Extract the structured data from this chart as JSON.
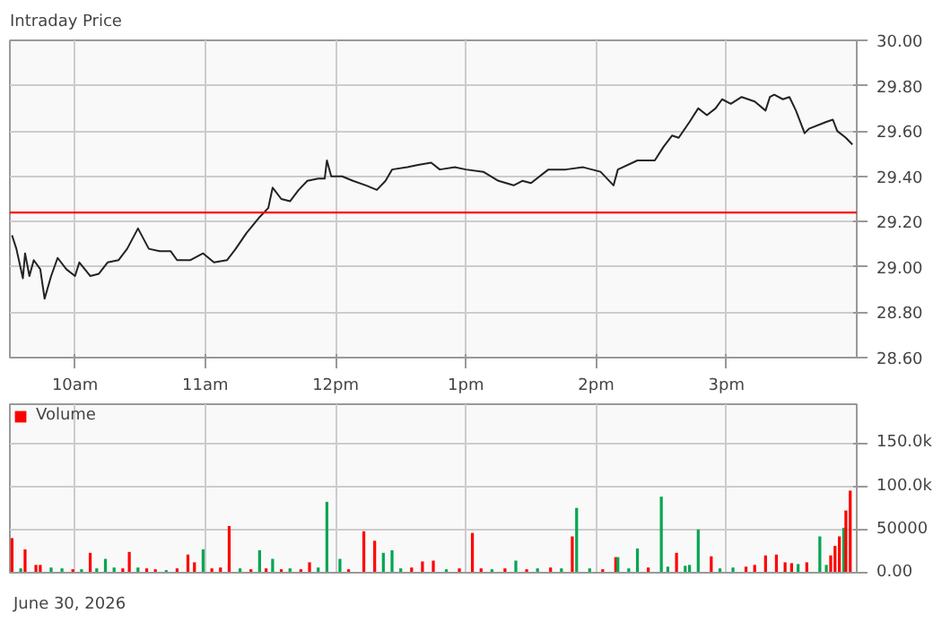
{
  "chart_data": [
    {
      "type": "line",
      "title": "Intraday Price",
      "xlim": [
        "2026-06-30T09:30",
        "2026-06-30T16:00"
      ],
      "ylim": [
        28.6,
        30.0
      ],
      "xticks": [
        {
          "value": "2026-06-30T10:00",
          "label": "10am"
        },
        {
          "value": "2026-06-30T11:00",
          "label": "11am"
        },
        {
          "value": "2026-06-30T12:00",
          "label": "12pm"
        },
        {
          "value": "2026-06-30T13:00",
          "label": "1pm"
        },
        {
          "value": "2026-06-30T14:00",
          "label": "2pm"
        },
        {
          "value": "2026-06-30T15:00",
          "label": "3pm"
        }
      ],
      "yticks": [
        {
          "value": 28.6,
          "label": "28.60"
        },
        {
          "value": 28.8,
          "label": "28.80"
        },
        {
          "value": 29.0,
          "label": "29.00"
        },
        {
          "value": 29.2,
          "label": "29.20"
        },
        {
          "value": 29.4,
          "label": "29.40"
        },
        {
          "value": 29.6,
          "label": "29.60"
        },
        {
          "value": 29.8,
          "label": "29.80"
        },
        {
          "value": 30.0,
          "label": "30.00"
        }
      ],
      "grid": true,
      "marker": "none",
      "line_style": "solid",
      "ref_lines": [
        {
          "axis": "y",
          "value": 29.24,
          "color": "#ff0000"
        }
      ],
      "series": [
        {
          "color": "#222222",
          "x": [
            "2026-06-30T09:31",
            "2026-06-30T09:33",
            "2026-06-30T09:36",
            "2026-06-30T09:37",
            "2026-06-30T09:39",
            "2026-06-30T09:41",
            "2026-06-30T09:44",
            "2026-06-30T09:46",
            "2026-06-30T09:49",
            "2026-06-30T09:52",
            "2026-06-30T09:56",
            "2026-06-30T10:00",
            "2026-06-30T10:02",
            "2026-06-30T10:07",
            "2026-06-30T10:11",
            "2026-06-30T10:15",
            "2026-06-30T10:20",
            "2026-06-30T10:24",
            "2026-06-30T10:29",
            "2026-06-30T10:34",
            "2026-06-30T10:39",
            "2026-06-30T10:44",
            "2026-06-30T10:47",
            "2026-06-30T10:53",
            "2026-06-30T10:59",
            "2026-06-30T11:04",
            "2026-06-30T11:10",
            "2026-06-30T11:14",
            "2026-06-30T11:19",
            "2026-06-30T11:25",
            "2026-06-30T11:29",
            "2026-06-30T11:31",
            "2026-06-30T11:35",
            "2026-06-30T11:39",
            "2026-06-30T11:43",
            "2026-06-30T11:47",
            "2026-06-30T11:52",
            "2026-06-30T11:55",
            "2026-06-30T11:56",
            "2026-06-30T11:58",
            "2026-06-30T12:03",
            "2026-06-30T12:08",
            "2026-06-30T12:14",
            "2026-06-30T12:19",
            "2026-06-30T12:23",
            "2026-06-30T12:26",
            "2026-06-30T12:33",
            "2026-06-30T12:38",
            "2026-06-30T12:44",
            "2026-06-30T12:48",
            "2026-06-30T12:55",
            "2026-06-30T13:00",
            "2026-06-30T13:08",
            "2026-06-30T13:15",
            "2026-06-30T13:22",
            "2026-06-30T13:26",
            "2026-06-30T13:30",
            "2026-06-30T13:38",
            "2026-06-30T13:46",
            "2026-06-30T13:54",
            "2026-06-30T14:02",
            "2026-06-30T14:08",
            "2026-06-30T14:10",
            "2026-06-30T14:19",
            "2026-06-30T14:27",
            "2026-06-30T14:31",
            "2026-06-30T14:35",
            "2026-06-30T14:38",
            "2026-06-30T14:43",
            "2026-06-30T14:47",
            "2026-06-30T14:51",
            "2026-06-30T14:55",
            "2026-06-30T14:58",
            "2026-06-30T15:02",
            "2026-06-30T15:07",
            "2026-06-30T15:13",
            "2026-06-30T15:18",
            "2026-06-30T15:20",
            "2026-06-30T15:22",
            "2026-06-30T15:26",
            "2026-06-30T15:29",
            "2026-06-30T15:32",
            "2026-06-30T15:36",
            "2026-06-30T15:38",
            "2026-06-30T15:46",
            "2026-06-30T15:49",
            "2026-06-30T15:51",
            "2026-06-30T15:55",
            "2026-06-30T15:58"
          ],
          "values": [
            29.14,
            29.08,
            28.95,
            29.06,
            28.96,
            29.03,
            28.99,
            28.86,
            28.96,
            29.04,
            28.99,
            28.96,
            29.02,
            28.96,
            28.97,
            29.02,
            29.03,
            29.08,
            29.17,
            29.08,
            29.07,
            29.07,
            29.03,
            29.03,
            29.06,
            29.02,
            29.03,
            29.08,
            29.15,
            29.22,
            29.26,
            29.35,
            29.3,
            29.29,
            29.34,
            29.38,
            29.39,
            29.39,
            29.47,
            29.4,
            29.4,
            29.38,
            29.36,
            29.34,
            29.38,
            29.43,
            29.44,
            29.45,
            29.46,
            29.43,
            29.44,
            29.43,
            29.42,
            29.38,
            29.36,
            29.38,
            29.37,
            29.43,
            29.43,
            29.44,
            29.42,
            29.36,
            29.43,
            29.47,
            29.47,
            29.53,
            29.58,
            29.57,
            29.64,
            29.7,
            29.67,
            29.7,
            29.74,
            29.72,
            29.75,
            29.73,
            29.69,
            29.75,
            29.76,
            29.74,
            29.75,
            29.69,
            29.59,
            29.61,
            29.64,
            29.65,
            29.6,
            29.57,
            29.54
          ]
        }
      ]
    },
    {
      "type": "bar",
      "xlim": [
        "2026-06-30T09:30",
        "2026-06-30T16:00"
      ],
      "ylim": [
        0,
        195000
      ],
      "tick_labels": "y",
      "xticks": [
        {
          "value": "2026-06-30T10:00",
          "label": null
        },
        {
          "value": "2026-06-30T11:00",
          "label": null
        },
        {
          "value": "2026-06-30T12:00",
          "label": null
        },
        {
          "value": "2026-06-30T13:00",
          "label": null
        },
        {
          "value": "2026-06-30T14:00",
          "label": null
        },
        {
          "value": "2026-06-30T15:00",
          "label": null
        }
      ],
      "yticks": [
        {
          "value": 0,
          "label": "0.00"
        },
        {
          "value": 50000,
          "label": "50000"
        },
        {
          "value": 100000,
          "label": "100.0k"
        },
        {
          "value": 150000,
          "label": "150.0k"
        }
      ],
      "grid": true,
      "legend": "top left",
      "annotations": [
        "June 30, 2026"
      ],
      "series": [
        {
          "name": "Volume",
          "color": "#00a651",
          "x": [
            "2026-06-30T09:31",
            "2026-06-30T09:35",
            "2026-06-30T09:37",
            "2026-06-30T09:42",
            "2026-06-30T09:44",
            "2026-06-30T09:49",
            "2026-06-30T09:54",
            "2026-06-30T09:59",
            "2026-06-30T10:03",
            "2026-06-30T10:07",
            "2026-06-30T10:10",
            "2026-06-30T10:14",
            "2026-06-30T10:18",
            "2026-06-30T10:22",
            "2026-06-30T10:25",
            "2026-06-30T10:29",
            "2026-06-30T10:33",
            "2026-06-30T10:37",
            "2026-06-30T10:42",
            "2026-06-30T10:47",
            "2026-06-30T10:52",
            "2026-06-30T10:55",
            "2026-06-30T10:59",
            "2026-06-30T11:03",
            "2026-06-30T11:07",
            "2026-06-30T11:11",
            "2026-06-30T11:16",
            "2026-06-30T11:21",
            "2026-06-30T11:25",
            "2026-06-30T11:28",
            "2026-06-30T11:31",
            "2026-06-30T11:35",
            "2026-06-30T11:39",
            "2026-06-30T11:44",
            "2026-06-30T11:48",
            "2026-06-30T11:52",
            "2026-06-30T11:56",
            "2026-06-30T12:02",
            "2026-06-30T12:06",
            "2026-06-30T12:13",
            "2026-06-30T12:18",
            "2026-06-30T12:22",
            "2026-06-30T12:26",
            "2026-06-30T12:30",
            "2026-06-30T12:35",
            "2026-06-30T12:40",
            "2026-06-30T12:45",
            "2026-06-30T12:51",
            "2026-06-30T12:57",
            "2026-06-30T13:03",
            "2026-06-30T13:07",
            "2026-06-30T13:12",
            "2026-06-30T13:18",
            "2026-06-30T13:23",
            "2026-06-30T13:28",
            "2026-06-30T13:33",
            "2026-06-30T13:39",
            "2026-06-30T13:44",
            "2026-06-30T13:49",
            "2026-06-30T13:51",
            "2026-06-30T13:57",
            "2026-06-30T14:03",
            "2026-06-30T14:09",
            "2026-06-30T14:10",
            "2026-06-30T14:15",
            "2026-06-30T14:19",
            "2026-06-30T14:24",
            "2026-06-30T14:30",
            "2026-06-30T14:33",
            "2026-06-30T14:37",
            "2026-06-30T14:41",
            "2026-06-30T14:43",
            "2026-06-30T14:47",
            "2026-06-30T14:53",
            "2026-06-30T14:57",
            "2026-06-30T15:03",
            "2026-06-30T15:09",
            "2026-06-30T15:13",
            "2026-06-30T15:18",
            "2026-06-30T15:23",
            "2026-06-30T15:27",
            "2026-06-30T15:30",
            "2026-06-30T15:33",
            "2026-06-30T15:37",
            "2026-06-30T15:43",
            "2026-06-30T15:46",
            "2026-06-30T15:48",
            "2026-06-30T15:50",
            "2026-06-30T15:52",
            "2026-06-30T15:54",
            "2026-06-30T15:55",
            "2026-06-30T15:57"
          ],
          "values": [
            40000,
            5000,
            27000,
            9000,
            9000,
            6000,
            5000,
            4000,
            4000,
            23000,
            5000,
            16000,
            6000,
            5000,
            24000,
            6000,
            5000,
            4000,
            3000,
            5000,
            21000,
            12000,
            27000,
            5000,
            6000,
            54000,
            5000,
            4000,
            26000,
            5000,
            16000,
            4000,
            5000,
            4000,
            12000,
            6000,
            82000,
            16000,
            4000,
            48000,
            37000,
            23000,
            26000,
            5000,
            6000,
            13000,
            14000,
            4000,
            5000,
            46000,
            5000,
            4000,
            5000,
            14000,
            4000,
            5000,
            6000,
            5000,
            42000,
            75000,
            5000,
            4000,
            18000,
            18000,
            5000,
            28000,
            6000,
            88000,
            7000,
            23000,
            8000,
            9000,
            50000,
            19000,
            5000,
            6000,
            7000,
            9000,
            20000,
            21000,
            12000,
            11000,
            10000,
            12000,
            42000,
            9000,
            20000,
            31000,
            42000,
            52000,
            72000,
            95000
          ],
          "colors": [
            "#ff0000",
            "#00a651",
            "#ff0000",
            "#ff0000",
            "#ff0000",
            "#00a651",
            "#00a651",
            "#ff0000",
            "#00a651",
            "#ff0000",
            "#00a651",
            "#00a651",
            "#00a651",
            "#ff0000",
            "#ff0000",
            "#00a651",
            "#ff0000",
            "#ff0000",
            "#00a651",
            "#ff0000",
            "#ff0000",
            "#ff0000",
            "#00a651",
            "#ff0000",
            "#ff0000",
            "#ff0000",
            "#00a651",
            "#ff0000",
            "#00a651",
            "#ff0000",
            "#00a651",
            "#ff0000",
            "#00a651",
            "#ff0000",
            "#ff0000",
            "#00a651",
            "#00a651",
            "#00a651",
            "#ff0000",
            "#ff0000",
            "#ff0000",
            "#00a651",
            "#00a651",
            "#00a651",
            "#ff0000",
            "#ff0000",
            "#ff0000",
            "#00a651",
            "#ff0000",
            "#ff0000",
            "#ff0000",
            "#00a651",
            "#ff0000",
            "#00a651",
            "#ff0000",
            "#00a651",
            "#ff0000",
            "#00a651",
            "#ff0000",
            "#00a651",
            "#00a651",
            "#ff0000",
            "#ff0000",
            "#00a651",
            "#00a651",
            "#00a651",
            "#ff0000",
            "#00a651",
            "#00a651",
            "#ff0000",
            "#00a651",
            "#00a651",
            "#00a651",
            "#ff0000",
            "#00a651",
            "#00a651",
            "#ff0000",
            "#ff0000",
            "#ff0000",
            "#ff0000",
            "#ff0000",
            "#ff0000",
            "#00a651",
            "#ff0000",
            "#00a651",
            "#00a651",
            "#ff0000",
            "#ff0000",
            "#ff0000",
            "#00a651",
            "#ff0000",
            "#ff0000"
          ]
        }
      ]
    }
  ]
}
